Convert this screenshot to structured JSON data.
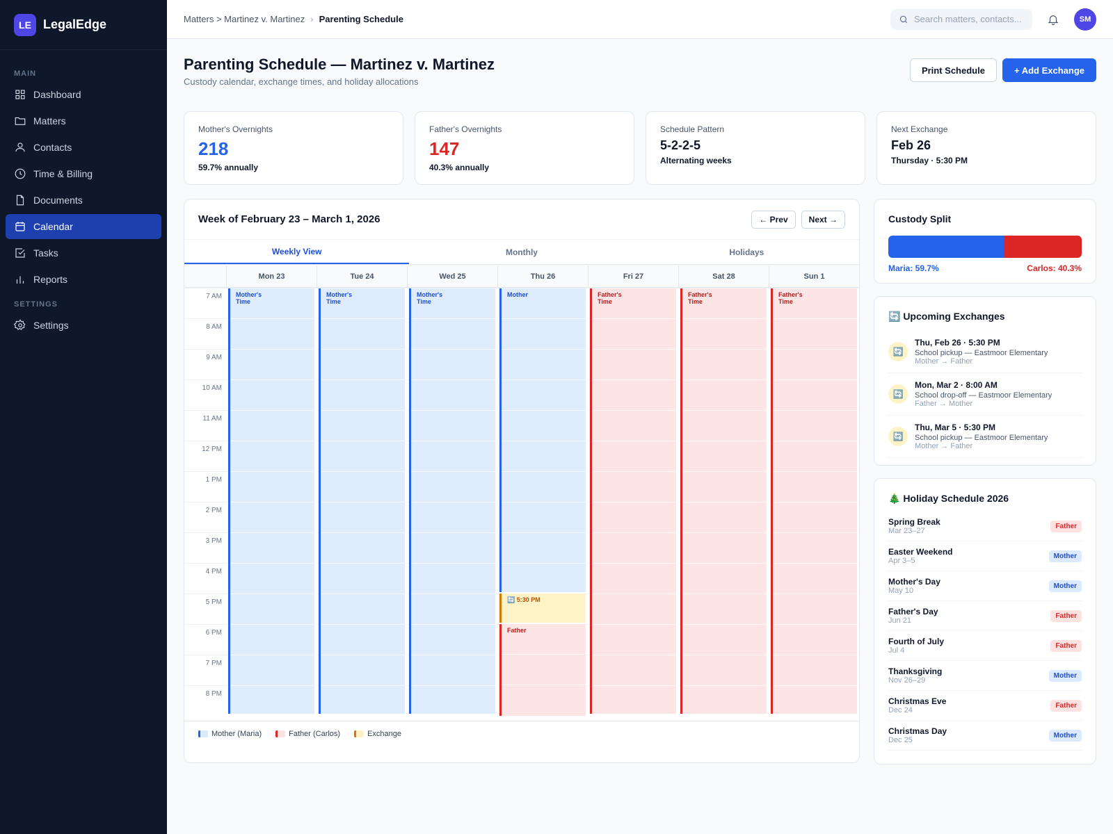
{
  "brand": {
    "logo": "LE",
    "name": "LegalEdge"
  },
  "sidebar": {
    "section_main": "MAIN",
    "section_settings": "SETTINGS",
    "items": [
      {
        "label": "Dashboard",
        "icon": "grid-icon"
      },
      {
        "label": "Matters",
        "icon": "folder-icon"
      },
      {
        "label": "Contacts",
        "icon": "user-icon"
      },
      {
        "label": "Time & Billing",
        "icon": "clock-icon"
      },
      {
        "label": "Documents",
        "icon": "document-icon"
      },
      {
        "label": "Calendar",
        "icon": "calendar-icon",
        "active": true
      },
      {
        "label": "Tasks",
        "icon": "checkbox-icon"
      },
      {
        "label": "Reports",
        "icon": "bar-chart-icon"
      }
    ],
    "settings_label": "Settings"
  },
  "topbar": {
    "breadcrumb_parent": "Matters > Martinez v. Martinez",
    "breadcrumb_sep": "›",
    "breadcrumb_current": "Parenting Schedule",
    "search_placeholder": "Search matters, contacts...",
    "avatar_initials": "SM"
  },
  "page": {
    "title": "Parenting Schedule — Martinez v. Martinez",
    "subtitle": "Custody calendar, exchange times, and holiday allocations",
    "print_label": "Print Schedule",
    "add_label": "+ Add Exchange"
  },
  "stats": [
    {
      "label": "Mother's Overnights",
      "value": "218",
      "sub": "59.7% annually",
      "color": "#2563eb"
    },
    {
      "label": "Father's Overnights",
      "value": "147",
      "sub": "40.3% annually",
      "color": "#dc2626"
    },
    {
      "label": "Schedule Pattern",
      "value": "5-2-2-5",
      "sub": "Alternating weeks",
      "color": "#0f172a"
    },
    {
      "label": "Next Exchange",
      "value": "Feb 26",
      "sub": "Thursday · 5:30 PM",
      "color": "#0f172a"
    }
  ],
  "calendar": {
    "title": "Week of February 23 – March 1, 2026",
    "prev_label": "← Prev",
    "next_label": "Next →",
    "tabs": [
      "Weekly View",
      "Monthly",
      "Holidays"
    ],
    "days": [
      "Mon 23",
      "Tue 24",
      "Wed 25",
      "Thu 26",
      "Fri 27",
      "Sat 28",
      "Sun 1"
    ],
    "hours": [
      "7 AM",
      "8 AM",
      "9 AM",
      "10 AM",
      "11 AM",
      "12 PM",
      "1 PM",
      "2 PM",
      "3 PM",
      "4 PM",
      "5 PM",
      "6 PM",
      "7 PM",
      "8 PM"
    ],
    "mother_time_label": "Mother's\nTime",
    "father_time_label": "Father's\nTime",
    "thu_mother_label": "Mother",
    "thu_exchange_label": "🔄 5:30 PM",
    "thu_father_label": "Father",
    "legend": [
      "Mother (Maria)",
      "Father (Carlos)",
      "Exchange"
    ]
  },
  "custody_split": {
    "title": "Custody Split",
    "mother_pct": 59.7,
    "father_pct": 40.3,
    "mother_label": "Maria: 59.7%",
    "father_label": "Carlos: 40.3%"
  },
  "exchanges": {
    "title": "🔄 Upcoming Exchanges",
    "items": [
      {
        "time": "Thu, Feb 26 · 5:30 PM",
        "desc": "School pickup — Eastmoor Elementary",
        "dir": "Mother → Father"
      },
      {
        "time": "Mon, Mar 2 · 8:00 AM",
        "desc": "School drop-off — Eastmoor Elementary",
        "dir": "Father → Mother"
      },
      {
        "time": "Thu, Mar 5 · 5:30 PM",
        "desc": "School pickup — Eastmoor Elementary",
        "dir": "Mother → Father"
      }
    ]
  },
  "holidays": {
    "title": "🎄 Holiday Schedule 2026",
    "items": [
      {
        "name": "Spring Break",
        "date": "Mar 23–27",
        "parent": "Father"
      },
      {
        "name": "Easter Weekend",
        "date": "Apr 3–5",
        "parent": "Mother"
      },
      {
        "name": "Mother's Day",
        "date": "May 10",
        "parent": "Mother"
      },
      {
        "name": "Father's Day",
        "date": "Jun 21",
        "parent": "Father"
      },
      {
        "name": "Fourth of July",
        "date": "Jul 4",
        "parent": "Father"
      },
      {
        "name": "Thanksgiving",
        "date": "Nov 26–29",
        "parent": "Mother"
      },
      {
        "name": "Christmas Eve",
        "date": "Dec 24",
        "parent": "Father"
      },
      {
        "name": "Christmas Day",
        "date": "Dec 25",
        "parent": "Mother"
      }
    ]
  }
}
